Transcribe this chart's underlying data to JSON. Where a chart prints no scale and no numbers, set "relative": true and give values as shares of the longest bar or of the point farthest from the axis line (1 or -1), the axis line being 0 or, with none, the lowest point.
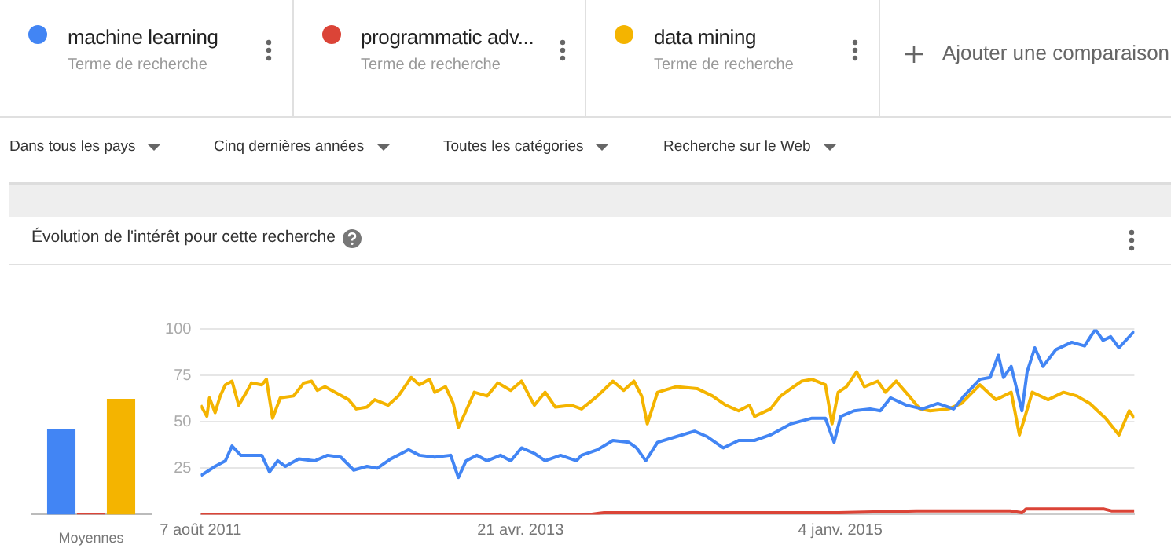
{
  "chart_data": [
    {
      "type": "bar",
      "categories": [
        "Moyennes"
      ],
      "relative": true,
      "series": [
        {
          "color": "#4285f4",
          "values": [
            0.74
          ]
        },
        {
          "color": "#db4437",
          "values": [
            0.014
          ]
        },
        {
          "color": "#f4b400",
          "values": [
            1
          ]
        }
      ]
    },
    {
      "type": "line",
      "title": "Évolution de l'intérêt pour cette recherche",
      "annotations": [
        "Terme de recherche",
        "Terme de recherche",
        "Terme de recherche",
        "Ajouter une comparaison",
        "Dans tous les pays",
        "Cinq dernières années",
        "Toutes les catégories",
        "Recherche sur le Web"
      ],
      "legend": "top",
      "grid": "y",
      "marker": "none",
      "xlim": [
        "2011-08-07",
        "2016-07-30"
      ],
      "xticks": [
        {
          "value": "2011-08-07",
          "label": "7 août 2011"
        },
        {
          "value": "2013-04-21",
          "label": "21 avr. 2013"
        },
        {
          "value": "2015-01-04",
          "label": "4 janv. 2015"
        }
      ],
      "ylim": [
        0,
        100
      ],
      "yticks": [
        25,
        50,
        75,
        100
      ],
      "series": [
        {
          "name": "machine learning",
          "color": "#4285f4",
          "x": [
            "2011-08-07",
            "2011-08-24",
            "2011-09-04",
            "2011-09-24",
            "2011-10-07",
            "2011-10-24",
            "2011-12-04",
            "2011-12-19",
            "2012-01-04",
            "2012-01-19",
            "2012-02-14",
            "2012-03-16",
            "2012-04-10",
            "2012-05-06",
            "2012-05-31",
            "2012-06-26",
            "2012-07-16",
            "2012-08-11",
            "2012-09-15",
            "2012-10-06",
            "2012-11-05",
            "2012-12-06",
            "2012-12-21",
            "2013-01-05",
            "2013-01-26",
            "2013-02-15",
            "2013-03-13",
            "2013-04-02",
            "2013-04-23",
            "2013-05-18",
            "2013-06-08",
            "2013-07-08",
            "2013-08-08",
            "2013-08-18",
            "2013-09-18",
            "2013-10-18",
            "2013-11-18",
            "2013-12-03",
            "2013-12-21",
            "2014-01-13",
            "2014-02-18",
            "2014-03-26",
            "2014-04-20",
            "2014-05-21",
            "2014-06-20",
            "2014-07-21",
            "2014-08-21",
            "2014-09-30",
            "2014-11-10",
            "2014-12-06",
            "2014-12-23",
            "2015-01-05",
            "2015-01-31",
            "2015-03-03",
            "2015-03-23",
            "2015-04-12",
            "2015-05-13",
            "2015-06-13",
            "2015-07-13",
            "2015-08-13",
            "2015-09-02",
            "2015-10-03",
            "2015-10-23",
            "2015-11-08",
            "2015-11-18",
            "2015-12-03",
            "2015-12-24",
            "2016-01-03",
            "2016-01-18",
            "2016-02-03",
            "2016-02-28",
            "2016-03-30",
            "2016-04-24",
            "2016-05-15",
            "2016-05-30",
            "2016-06-14",
            "2016-06-30",
            "2016-07-30"
          ],
          "values": [
            21,
            24,
            26,
            29,
            37,
            32,
            32,
            23,
            29,
            26,
            30,
            29,
            32,
            31,
            24,
            26,
            25,
            30,
            35,
            32,
            31,
            32,
            20,
            29,
            32,
            29,
            32,
            29,
            36,
            33,
            29,
            32,
            29,
            32,
            35,
            40,
            39,
            36,
            29,
            39,
            42,
            45,
            42,
            36,
            40,
            40,
            43,
            49,
            52,
            52,
            39,
            53,
            56,
            57,
            56,
            63,
            59,
            57,
            60,
            57,
            64,
            73,
            74,
            86,
            74,
            80,
            56,
            77,
            90,
            80,
            89,
            93,
            91,
            100,
            94,
            96,
            90,
            99
          ]
        },
        {
          "name": "programmatic adv...",
          "color": "#db4437",
          "x": [
            "2011-08-07",
            "2013-09-01",
            "2013-10-01",
            "2015-01-01",
            "2015-06-01",
            "2015-12-01",
            "2015-12-24",
            "2016-01-01",
            "2016-06-01",
            "2016-06-15",
            "2016-07-30"
          ],
          "values": [
            0,
            0,
            1,
            1,
            2,
            2,
            1,
            3,
            3,
            2,
            2
          ]
        },
        {
          "name": "data mining",
          "color": "#f4b400",
          "x": [
            "2011-08-07",
            "2011-08-19",
            "2011-08-24",
            "2011-09-04",
            "2011-09-14",
            "2011-09-24",
            "2011-10-07",
            "2011-10-20",
            "2011-11-04",
            "2011-11-14",
            "2011-12-04",
            "2011-12-13",
            "2011-12-25",
            "2012-01-09",
            "2012-02-04",
            "2012-02-24",
            "2012-03-10",
            "2012-03-21",
            "2012-04-05",
            "2012-04-25",
            "2012-05-21",
            "2012-06-05",
            "2012-06-26",
            "2012-07-11",
            "2012-08-06",
            "2012-08-26",
            "2012-09-20",
            "2012-10-06",
            "2012-10-26",
            "2012-11-05",
            "2012-11-26",
            "2012-12-11",
            "2012-12-21",
            "2013-01-05",
            "2013-01-21",
            "2013-02-15",
            "2013-03-08",
            "2013-04-02",
            "2013-04-23",
            "2013-05-18",
            "2013-06-08",
            "2013-06-28",
            "2013-07-29",
            "2013-08-18",
            "2013-09-18",
            "2013-10-18",
            "2013-11-08",
            "2013-11-28",
            "2013-12-13",
            "2013-12-24",
            "2014-01-13",
            "2014-02-18",
            "2014-03-31",
            "2014-04-30",
            "2014-05-26",
            "2014-06-20",
            "2014-07-11",
            "2014-07-21",
            "2014-08-21",
            "2014-09-10",
            "2014-09-30",
            "2014-10-21",
            "2014-11-10",
            "2014-12-06",
            "2014-12-19",
            "2014-12-31",
            "2015-01-16",
            "2015-02-05",
            "2015-02-20",
            "2015-03-18",
            "2015-04-02",
            "2015-04-23",
            "2015-05-18",
            "2015-06-08",
            "2015-06-28",
            "2015-08-03",
            "2015-08-28",
            "2015-10-03",
            "2015-11-03",
            "2015-12-03",
            "2015-12-19",
            "2015-12-29",
            "2016-01-13",
            "2016-02-13",
            "2016-03-14",
            "2016-04-09",
            "2016-05-04",
            "2016-06-04",
            "2016-06-30",
            "2016-07-20",
            "2016-07-30"
          ],
          "values": [
            59,
            53,
            63,
            55,
            64,
            70,
            72,
            59,
            66,
            71,
            70,
            73,
            52,
            63,
            64,
            71,
            72,
            67,
            69,
            66,
            62,
            57,
            58,
            62,
            59,
            64,
            74,
            70,
            73,
            66,
            69,
            60,
            47,
            56,
            66,
            64,
            71,
            67,
            72,
            59,
            66,
            58,
            59,
            57,
            64,
            72,
            67,
            72,
            64,
            49,
            66,
            69,
            68,
            64,
            59,
            56,
            59,
            53,
            57,
            64,
            68,
            72,
            73,
            70,
            49,
            66,
            69,
            77,
            69,
            72,
            66,
            72,
            64,
            57,
            56,
            57,
            60,
            70,
            62,
            66,
            43,
            52,
            66,
            62,
            66,
            64,
            60,
            52,
            43,
            56,
            52
          ]
        }
      ]
    }
  ]
}
